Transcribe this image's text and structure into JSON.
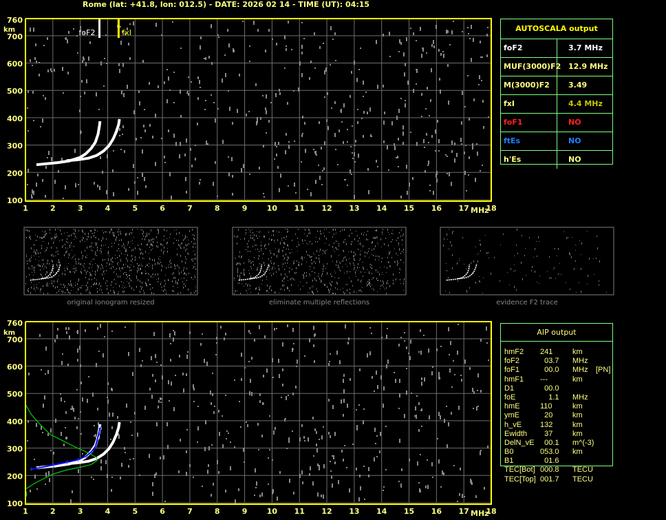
{
  "header": {
    "title": "Rome (lat: +41.8, lon: 012.5) - DATE: 2026 02 14 - TIME (UT): 04:15"
  },
  "colors": {
    "axis": "#ffff00",
    "grid": "#808080",
    "trace": "#ffffff",
    "profile": "#00cc00",
    "fit": "#0000ff",
    "table_border": "#80ff80"
  },
  "autoscala": {
    "title": "AUTOSCALA output",
    "rows": [
      {
        "label": "foF2",
        "value": "3.7 MHz",
        "color": "#ffffff"
      },
      {
        "label": "MUF(3000)F2",
        "value": "12.9 MHz",
        "color": "#ffff80"
      },
      {
        "label": "M(3000)F2",
        "value": "3.49",
        "color": "#ffff80"
      },
      {
        "label": "fxI",
        "value": "4.4 MHz",
        "color": "#ffff80",
        "value_color": "#c8c800"
      },
      {
        "label": "foF1",
        "value": "NO",
        "color": "#ff2020"
      },
      {
        "label": "ftEs",
        "value": "NO",
        "color": "#2080ff"
      },
      {
        "label": "h'Es",
        "value": "NO",
        "color": "#ffff80"
      }
    ]
  },
  "aip": {
    "title": "AIP output",
    "rows": [
      {
        "k": "hmF2",
        "v": "241",
        "u": "km",
        "x": ""
      },
      {
        "k": "foF2",
        "v": "  03.7",
        "u": "MHz",
        "x": ""
      },
      {
        "k": "foF1",
        "v": "  00.0",
        "u": "MHz",
        "x": "[PN]"
      },
      {
        "k": "hmF1",
        "v": "---",
        "u": "km",
        "x": ""
      },
      {
        "k": "D1",
        "v": "  00.0",
        "u": "",
        "x": ""
      },
      {
        "k": "foE",
        "v": "    1.1",
        "u": "MHz",
        "x": ""
      },
      {
        "k": "hmE",
        "v": "110",
        "u": "km",
        "x": ""
      },
      {
        "k": "ymE",
        "v": "  20",
        "u": "km",
        "x": ""
      },
      {
        "k": "h_vE",
        "v": "132",
        "u": "km",
        "x": ""
      },
      {
        "k": "Ewidth",
        "v": "  37",
        "u": "km",
        "x": ""
      },
      {
        "k": "DelN_vE",
        "v": "  00.1",
        "u": "m^(-3)",
        "x": ""
      },
      {
        "k": "B0",
        "v": "053.0",
        "u": "km",
        "x": ""
      },
      {
        "k": "B1",
        "v": "  01.6",
        "u": "",
        "x": ""
      },
      {
        "k": "TEC[Bot]",
        "v": "000.8",
        "u": "TECU",
        "x": ""
      },
      {
        "k": "TEC[Top]",
        "v": "001.7",
        "u": "TECU",
        "x": ""
      }
    ]
  },
  "thumbnails": [
    {
      "caption": "original ionogram resized"
    },
    {
      "caption": "eliminate multiple reflections"
    },
    {
      "caption": "evidence F2 trace"
    }
  ],
  "chart_data": [
    {
      "type": "scatter",
      "name": "ionogram-autoscala",
      "xlabel": "MHz",
      "ylabel": "km",
      "xlim": [
        1,
        18
      ],
      "ylim": [
        100,
        760
      ],
      "grid": true,
      "xticks": [
        "1",
        "2",
        "3",
        "4",
        "5",
        "6",
        "7",
        "8",
        "9",
        "10",
        "11",
        "12",
        "13",
        "14",
        "15",
        "16",
        "17",
        "18"
      ],
      "yticks": [
        "100",
        "200",
        "300",
        "400",
        "500",
        "600",
        "700",
        "760"
      ],
      "markers": [
        {
          "label": "foF2",
          "freq": 3.7,
          "color": "#ffffff"
        },
        {
          "label": "fxI",
          "freq": 4.4,
          "color": "#ffff00"
        }
      ],
      "o_trace": [
        [
          1.4,
          228
        ],
        [
          1.8,
          232
        ],
        [
          2.2,
          236
        ],
        [
          2.6,
          242
        ],
        [
          3.0,
          255
        ],
        [
          3.2,
          268
        ],
        [
          3.4,
          288
        ],
        [
          3.55,
          310
        ],
        [
          3.65,
          340
        ],
        [
          3.7,
          370
        ],
        [
          3.72,
          387
        ]
      ],
      "x_trace": [
        [
          2.5,
          243
        ],
        [
          2.9,
          246
        ],
        [
          3.3,
          252
        ],
        [
          3.6,
          262
        ],
        [
          3.85,
          278
        ],
        [
          4.05,
          298
        ],
        [
          4.2,
          322
        ],
        [
          4.32,
          350
        ],
        [
          4.4,
          375
        ],
        [
          4.43,
          395
        ]
      ]
    },
    {
      "type": "scatter",
      "name": "ionogram-aip",
      "xlabel": "MHz",
      "ylabel": "km",
      "xlim": [
        1,
        18
      ],
      "ylim": [
        100,
        760
      ],
      "grid": true,
      "xticks": [
        "1",
        "2",
        "3",
        "4",
        "5",
        "6",
        "7",
        "8",
        "9",
        "10",
        "11",
        "12",
        "13",
        "14",
        "15",
        "16",
        "17",
        "18"
      ],
      "yticks": [
        "100",
        "200",
        "300",
        "400",
        "500",
        "600",
        "700",
        "760"
      ],
      "o_trace": [
        [
          1.4,
          228
        ],
        [
          1.8,
          232
        ],
        [
          2.2,
          236
        ],
        [
          2.6,
          242
        ],
        [
          3.0,
          255
        ],
        [
          3.2,
          268
        ],
        [
          3.4,
          288
        ],
        [
          3.55,
          310
        ],
        [
          3.65,
          340
        ],
        [
          3.7,
          370
        ],
        [
          3.72,
          387
        ]
      ],
      "x_trace": [
        [
          2.5,
          243
        ],
        [
          2.9,
          246
        ],
        [
          3.3,
          252
        ],
        [
          3.6,
          262
        ],
        [
          3.85,
          278
        ],
        [
          4.05,
          298
        ],
        [
          4.2,
          322
        ],
        [
          4.32,
          350
        ],
        [
          4.4,
          375
        ],
        [
          4.43,
          395
        ]
      ],
      "fit_trace": [
        [
          1.2,
          223
        ],
        [
          1.5,
          228
        ],
        [
          2.0,
          238
        ],
        [
          2.5,
          248
        ],
        [
          2.9,
          257
        ],
        [
          3.2,
          270
        ],
        [
          3.4,
          286
        ],
        [
          3.55,
          305
        ],
        [
          3.62,
          330
        ],
        [
          3.68,
          355
        ],
        [
          3.72,
          375
        ]
      ],
      "profile": [
        [
          1.0,
          118
        ],
        [
          1.05,
          130
        ],
        [
          1.0,
          150
        ],
        [
          1.4,
          175
        ],
        [
          2.0,
          205
        ],
        [
          2.5,
          220
        ],
        [
          3.0,
          230
        ],
        [
          3.4,
          240
        ],
        [
          3.62,
          255
        ],
        [
          3.6,
          265
        ],
        [
          3.3,
          282
        ],
        [
          2.9,
          300
        ],
        [
          2.4,
          325
        ],
        [
          1.9,
          350
        ],
        [
          1.5,
          390
        ],
        [
          1.2,
          425
        ],
        [
          1.0,
          460
        ]
      ]
    }
  ]
}
